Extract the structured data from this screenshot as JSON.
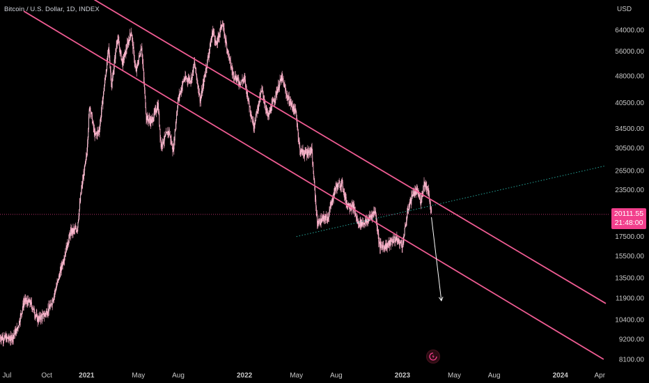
{
  "header": {
    "symbol_title": "Bitcoin / U.S. Dollar, 1D, INDEX"
  },
  "price_tag": {
    "price": "20111.55",
    "countdown": "21:48:00"
  },
  "colors": {
    "background": "#000000",
    "candle": "#f6a9c2",
    "channel_line": "#f05c93",
    "trend_line": "#26a69a",
    "current_price_line": "#f23f8c",
    "arrow": "#ffffff",
    "axis_text": "#c8c8c8"
  },
  "chart_data": {
    "type": "candlestick",
    "currency_label": "USD",
    "scale": "log",
    "ylim": [
      8000,
      72000
    ],
    "xlim": [
      "2020-06-15",
      "2024-04-15"
    ],
    "y_ticks": [
      "64000.00",
      "56000.00",
      "48000.00",
      "40500.00",
      "34500.00",
      "30500.00",
      "26500.00",
      "23500.00",
      "17500.00",
      "15500.00",
      "13500.00",
      "11900.00",
      "10400.00",
      "9200.00",
      "8100.00"
    ],
    "x_ticks": [
      {
        "label": "Jul",
        "date": "2020-07-01",
        "bold": false
      },
      {
        "label": "Oct",
        "date": "2020-10-01",
        "bold": false
      },
      {
        "label": "2021",
        "date": "2021-01-01",
        "bold": true
      },
      {
        "label": "May",
        "date": "2021-05-01",
        "bold": false
      },
      {
        "label": "Aug",
        "date": "2021-08-01",
        "bold": false
      },
      {
        "label": "2022",
        "date": "2022-01-01",
        "bold": true
      },
      {
        "label": "May",
        "date": "2022-05-01",
        "bold": false
      },
      {
        "label": "Aug",
        "date": "2022-08-01",
        "bold": false
      },
      {
        "label": "2023",
        "date": "2023-01-01",
        "bold": true
      },
      {
        "label": "May",
        "date": "2023-05-01",
        "bold": false
      },
      {
        "label": "Aug",
        "date": "2023-08-01",
        "bold": false
      },
      {
        "label": "2024",
        "date": "2024-01-01",
        "bold": true
      },
      {
        "label": "Apr",
        "date": "2024-04-01",
        "bold": false
      }
    ],
    "price_path": [
      [
        "2020-06-15",
        9300
      ],
      [
        "2020-07-10",
        9200
      ],
      [
        "2020-07-25",
        9800
      ],
      [
        "2020-08-10",
        11700
      ],
      [
        "2020-08-25",
        11500
      ],
      [
        "2020-09-10",
        10400
      ],
      [
        "2020-09-25",
        10700
      ],
      [
        "2020-10-10",
        11300
      ],
      [
        "2020-10-25",
        13000
      ],
      [
        "2020-11-10",
        15400
      ],
      [
        "2020-11-25",
        18000
      ],
      [
        "2020-12-10",
        18300
      ],
      [
        "2020-12-20",
        23500
      ],
      [
        "2021-01-01",
        29000
      ],
      [
        "2021-01-08",
        40000
      ],
      [
        "2021-01-20",
        33000
      ],
      [
        "2021-01-30",
        34000
      ],
      [
        "2021-02-10",
        44000
      ],
      [
        "2021-02-21",
        57000
      ],
      [
        "2021-02-28",
        45000
      ],
      [
        "2021-03-13",
        61000
      ],
      [
        "2021-03-25",
        52000
      ],
      [
        "2021-04-05",
        58000
      ],
      [
        "2021-04-14",
        63500
      ],
      [
        "2021-04-25",
        49000
      ],
      [
        "2021-05-08",
        58000
      ],
      [
        "2021-05-19",
        37000
      ],
      [
        "2021-05-31",
        36000
      ],
      [
        "2021-06-15",
        40000
      ],
      [
        "2021-06-22",
        31000
      ],
      [
        "2021-07-10",
        34000
      ],
      [
        "2021-07-20",
        30000
      ],
      [
        "2021-07-31",
        41000
      ],
      [
        "2021-08-14",
        47000
      ],
      [
        "2021-08-31",
        47000
      ],
      [
        "2021-09-07",
        52000
      ],
      [
        "2021-09-21",
        41000
      ],
      [
        "2021-10-01",
        48000
      ],
      [
        "2021-10-20",
        64000
      ],
      [
        "2021-10-28",
        58000
      ],
      [
        "2021-11-10",
        67000
      ],
      [
        "2021-11-26",
        54000
      ],
      [
        "2021-12-04",
        49000
      ],
      [
        "2021-12-20",
        46000
      ],
      [
        "2022-01-01",
        47000
      ],
      [
        "2022-01-10",
        41000
      ],
      [
        "2022-01-22",
        35000
      ],
      [
        "2022-02-10",
        44000
      ],
      [
        "2022-02-24",
        37000
      ],
      [
        "2022-03-28",
        47500
      ],
      [
        "2022-04-10",
        42000
      ],
      [
        "2022-04-30",
        38000
      ],
      [
        "2022-05-09",
        30000
      ],
      [
        "2022-05-20",
        29500
      ],
      [
        "2022-06-05",
        30000
      ],
      [
        "2022-06-14",
        22000
      ],
      [
        "2022-06-18",
        19000
      ],
      [
        "2022-07-01",
        19500
      ],
      [
        "2022-07-13",
        19800
      ],
      [
        "2022-07-30",
        23800
      ],
      [
        "2022-08-14",
        24500
      ],
      [
        "2022-08-25",
        21500
      ],
      [
        "2022-09-10",
        21000
      ],
      [
        "2022-09-20",
        19000
      ],
      [
        "2022-10-10",
        19200
      ],
      [
        "2022-10-30",
        20600
      ],
      [
        "2022-11-09",
        16500
      ],
      [
        "2022-11-25",
        16500
      ],
      [
        "2022-12-15",
        17300
      ],
      [
        "2023-01-01",
        16600
      ],
      [
        "2023-01-14",
        20800
      ],
      [
        "2023-01-25",
        23000
      ],
      [
        "2023-02-05",
        23200
      ],
      [
        "2023-02-12",
        21800
      ],
      [
        "2023-02-20",
        24500
      ],
      [
        "2023-03-01",
        23500
      ],
      [
        "2023-03-09",
        20111.55
      ]
    ],
    "projection_arrow": {
      "from": [
        "2023-03-09",
        20111.55
      ],
      "to": [
        "2023-04-01",
        11700
      ]
    },
    "channel_lines": [
      {
        "from": [
          "2020-08-09",
          72000
        ],
        "to": [
          "2024-04-10",
          8100
        ]
      },
      {
        "from": [
          "2020-06-15",
          110000
        ],
        "to": [
          "2024-04-15",
          11500
        ]
      }
    ],
    "trend_line": {
      "from": [
        "2022-05-01",
        17500
      ],
      "to": [
        "2024-04-15",
        27300
      ]
    },
    "current_price": 20111.55
  }
}
